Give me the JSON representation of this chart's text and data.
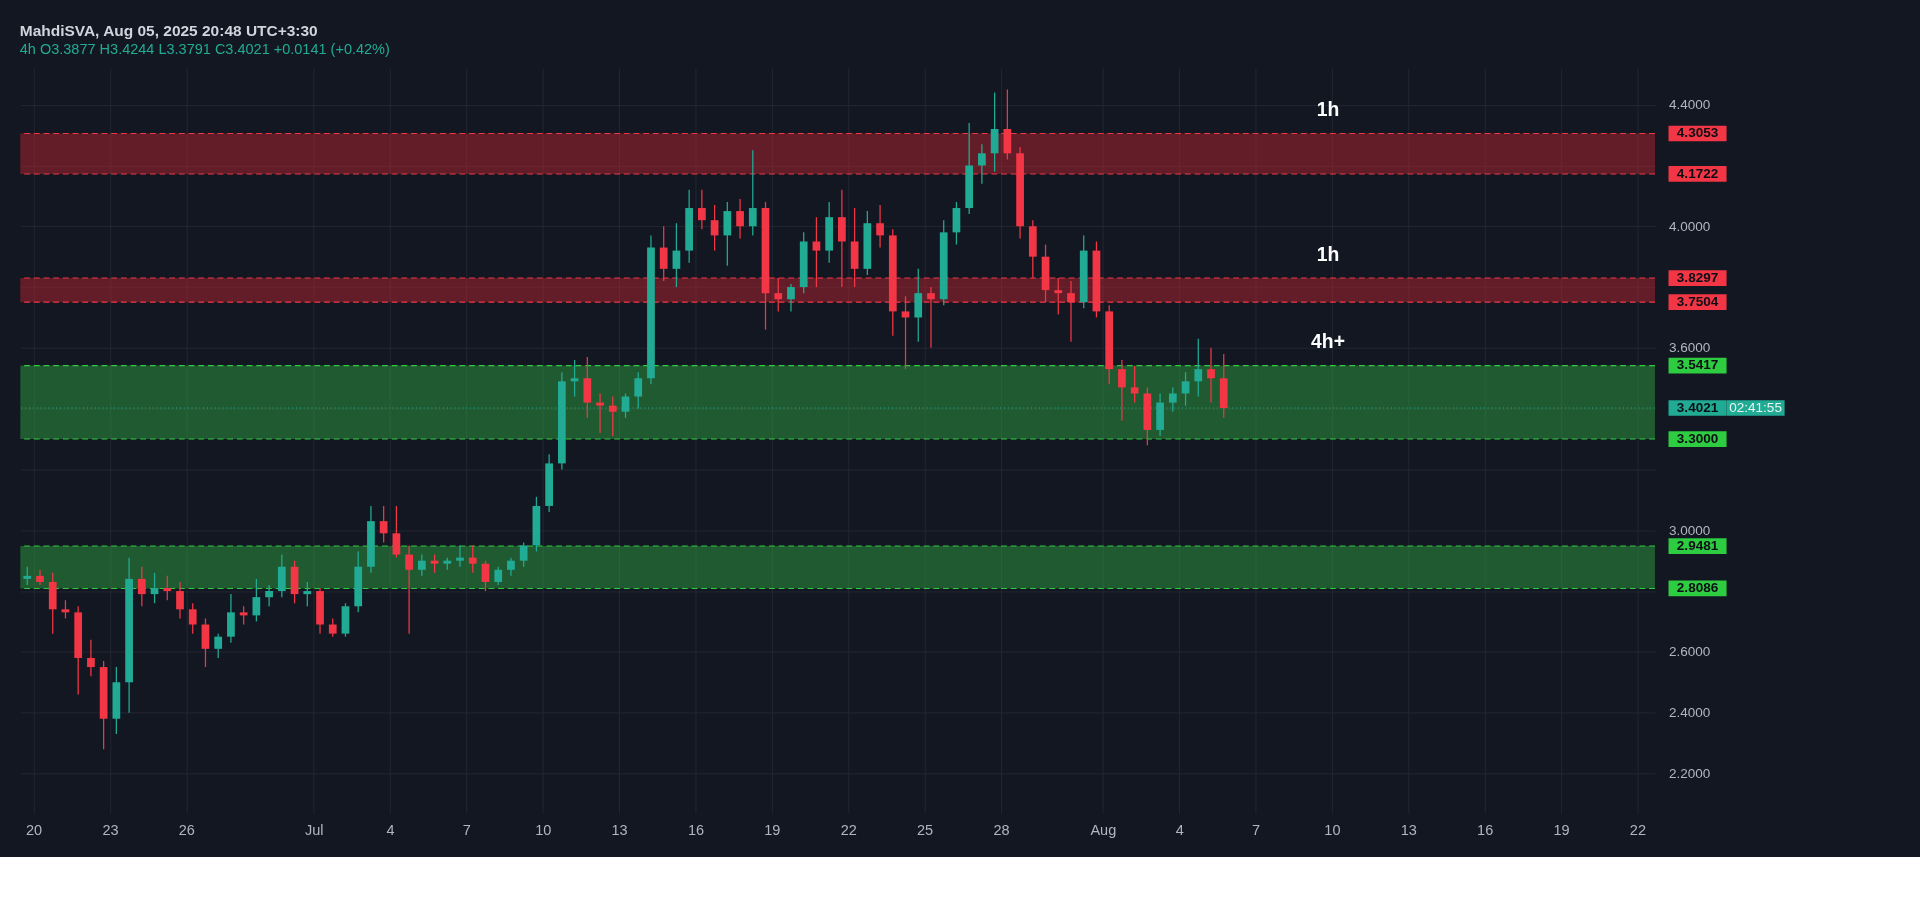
{
  "chart_data": {
    "type": "candlestick",
    "title": "MahdiSVA, Aug 05, 2025 20:48 UTC+3:30",
    "subtitle": "4h  O3.3877  H3.4244  L3.3791  C3.4021  +0.0141 (+0.42%)",
    "x": [
      "2025-06-19T18:00",
      "2025-06-20T06:00",
      "2025-06-20T18:00",
      "2025-06-21T06:00",
      "2025-06-21T18:00",
      "2025-06-22T06:00",
      "2025-06-22T18:00",
      "2025-06-23T06:00",
      "2025-06-23T18:00",
      "2025-06-24T06:00",
      "2025-06-24T18:00",
      "2025-06-25T06:00",
      "2025-06-25T18:00",
      "2025-06-26T06:00",
      "2025-06-26T18:00",
      "2025-06-27T06:00",
      "2025-06-27T18:00",
      "2025-06-28T06:00",
      "2025-06-28T18:00",
      "2025-06-29T06:00",
      "2025-06-29T18:00",
      "2025-06-30T06:00",
      "2025-06-30T18:00",
      "2025-07-01T06:00",
      "2025-07-01T18:00",
      "2025-07-02T06:00",
      "2025-07-02T18:00",
      "2025-07-03T06:00",
      "2025-07-03T18:00",
      "2025-07-04T06:00",
      "2025-07-04T18:00",
      "2025-07-05T06:00",
      "2025-07-05T18:00",
      "2025-07-06T06:00",
      "2025-07-06T18:00",
      "2025-07-07T06:00",
      "2025-07-07T18:00",
      "2025-07-08T06:00",
      "2025-07-08T18:00",
      "2025-07-09T06:00",
      "2025-07-09T18:00",
      "2025-07-10T06:00",
      "2025-07-10T18:00",
      "2025-07-11T06:00",
      "2025-07-11T18:00",
      "2025-07-12T06:00",
      "2025-07-12T18:00",
      "2025-07-13T06:00",
      "2025-07-13T18:00",
      "2025-07-14T06:00",
      "2025-07-14T18:00",
      "2025-07-15T06:00",
      "2025-07-15T18:00",
      "2025-07-16T06:00",
      "2025-07-16T18:00",
      "2025-07-17T06:00",
      "2025-07-17T18:00",
      "2025-07-18T06:00",
      "2025-07-18T18:00",
      "2025-07-19T06:00",
      "2025-07-19T18:00",
      "2025-07-20T06:00",
      "2025-07-20T18:00",
      "2025-07-21T06:00",
      "2025-07-21T18:00",
      "2025-07-22T06:00",
      "2025-07-22T18:00",
      "2025-07-23T06:00",
      "2025-07-23T18:00",
      "2025-07-24T06:00",
      "2025-07-24T18:00",
      "2025-07-25T06:00",
      "2025-07-25T18:00",
      "2025-07-26T06:00",
      "2025-07-26T18:00",
      "2025-07-27T06:00",
      "2025-07-27T18:00",
      "2025-07-28T06:00",
      "2025-07-28T18:00",
      "2025-07-29T06:00",
      "2025-07-29T18:00",
      "2025-07-30T06:00",
      "2025-07-30T18:00",
      "2025-07-31T06:00",
      "2025-07-31T18:00",
      "2025-08-01T06:00",
      "2025-08-01T18:00",
      "2025-08-02T06:00",
      "2025-08-02T18:00",
      "2025-08-03T06:00",
      "2025-08-03T18:00",
      "2025-08-04T06:00",
      "2025-08-04T18:00",
      "2025-08-05T06:00",
      "2025-08-05T18:00"
    ],
    "ohlc": [
      [
        2.84,
        2.88,
        2.82,
        2.85
      ],
      [
        2.85,
        2.87,
        2.82,
        2.83
      ],
      [
        2.83,
        2.86,
        2.66,
        2.74
      ],
      [
        2.74,
        2.77,
        2.71,
        2.73
      ],
      [
        2.73,
        2.75,
        2.46,
        2.58
      ],
      [
        2.58,
        2.64,
        2.52,
        2.55
      ],
      [
        2.55,
        2.57,
        2.28,
        2.38
      ],
      [
        2.38,
        2.55,
        2.33,
        2.5
      ],
      [
        2.5,
        2.91,
        2.4,
        2.84
      ],
      [
        2.84,
        2.88,
        2.75,
        2.79
      ],
      [
        2.79,
        2.86,
        2.76,
        2.81
      ],
      [
        2.81,
        2.85,
        2.77,
        2.8
      ],
      [
        2.8,
        2.83,
        2.71,
        2.74
      ],
      [
        2.74,
        2.76,
        2.66,
        2.69
      ],
      [
        2.69,
        2.71,
        2.55,
        2.61
      ],
      [
        2.61,
        2.66,
        2.58,
        2.65
      ],
      [
        2.65,
        2.79,
        2.63,
        2.73
      ],
      [
        2.73,
        2.75,
        2.69,
        2.72
      ],
      [
        2.72,
        2.84,
        2.7,
        2.78
      ],
      [
        2.78,
        2.82,
        2.75,
        2.8
      ],
      [
        2.8,
        2.92,
        2.78,
        2.88
      ],
      [
        2.88,
        2.9,
        2.76,
        2.79
      ],
      [
        2.79,
        2.83,
        2.75,
        2.8
      ],
      [
        2.8,
        2.81,
        2.66,
        2.69
      ],
      [
        2.69,
        2.71,
        2.65,
        2.66
      ],
      [
        2.66,
        2.76,
        2.65,
        2.75
      ],
      [
        2.75,
        2.93,
        2.73,
        2.88
      ],
      [
        2.88,
        3.08,
        2.86,
        3.03
      ],
      [
        3.03,
        3.08,
        2.96,
        2.99
      ],
      [
        2.99,
        3.08,
        2.91,
        2.92
      ],
      [
        2.92,
        2.95,
        2.66,
        2.87
      ],
      [
        2.87,
        2.92,
        2.85,
        2.9
      ],
      [
        2.9,
        2.92,
        2.86,
        2.89
      ],
      [
        2.89,
        2.91,
        2.87,
        2.9
      ],
      [
        2.9,
        2.95,
        2.88,
        2.91
      ],
      [
        2.91,
        2.95,
        2.86,
        2.89
      ],
      [
        2.89,
        2.9,
        2.8,
        2.83
      ],
      [
        2.83,
        2.88,
        2.82,
        2.87
      ],
      [
        2.87,
        2.91,
        2.85,
        2.9
      ],
      [
        2.9,
        2.96,
        2.88,
        2.95
      ],
      [
        2.95,
        3.11,
        2.93,
        3.08
      ],
      [
        3.08,
        3.25,
        3.06,
        3.22
      ],
      [
        3.22,
        3.52,
        3.2,
        3.49
      ],
      [
        3.49,
        3.56,
        3.44,
        3.5
      ],
      [
        3.5,
        3.57,
        3.37,
        3.42
      ],
      [
        3.42,
        3.45,
        3.32,
        3.41
      ],
      [
        3.41,
        3.44,
        3.31,
        3.39
      ],
      [
        3.39,
        3.45,
        3.37,
        3.44
      ],
      [
        3.44,
        3.52,
        3.4,
        3.5
      ],
      [
        3.5,
        3.97,
        3.48,
        3.93
      ],
      [
        3.93,
        4.0,
        3.82,
        3.86
      ],
      [
        3.86,
        4.01,
        3.8,
        3.92
      ],
      [
        3.92,
        4.12,
        3.88,
        4.06
      ],
      [
        4.06,
        4.12,
        3.99,
        4.02
      ],
      [
        4.02,
        4.07,
        3.92,
        3.97
      ],
      [
        3.97,
        4.08,
        3.87,
        4.05
      ],
      [
        4.05,
        4.09,
        3.96,
        4.0
      ],
      [
        4.0,
        4.25,
        3.97,
        4.06
      ],
      [
        4.06,
        4.08,
        3.66,
        3.78
      ],
      [
        3.78,
        3.83,
        3.72,
        3.76
      ],
      [
        3.76,
        3.81,
        3.72,
        3.8
      ],
      [
        3.8,
        3.98,
        3.78,
        3.95
      ],
      [
        3.95,
        4.03,
        3.8,
        3.92
      ],
      [
        3.92,
        4.08,
        3.88,
        4.03
      ],
      [
        4.03,
        4.12,
        3.8,
        3.95
      ],
      [
        3.95,
        4.06,
        3.8,
        3.86
      ],
      [
        3.86,
        4.05,
        3.84,
        4.01
      ],
      [
        4.01,
        4.07,
        3.93,
        3.97
      ],
      [
        3.97,
        3.99,
        3.64,
        3.72
      ],
      [
        3.72,
        3.77,
        3.53,
        3.7
      ],
      [
        3.7,
        3.86,
        3.62,
        3.78
      ],
      [
        3.78,
        3.8,
        3.6,
        3.76
      ],
      [
        3.76,
        4.02,
        3.74,
        3.98
      ],
      [
        3.98,
        4.08,
        3.94,
        4.06
      ],
      [
        4.06,
        4.34,
        4.04,
        4.2
      ],
      [
        4.2,
        4.27,
        4.14,
        4.24
      ],
      [
        4.24,
        4.44,
        4.18,
        4.32
      ],
      [
        4.32,
        4.45,
        4.22,
        4.24
      ],
      [
        4.24,
        4.26,
        3.96,
        4.0
      ],
      [
        4.0,
        4.02,
        3.83,
        3.9
      ],
      [
        3.9,
        3.94,
        3.75,
        3.79
      ],
      [
        3.79,
        3.83,
        3.71,
        3.78
      ],
      [
        3.78,
        3.82,
        3.62,
        3.75
      ],
      [
        3.75,
        3.97,
        3.73,
        3.92
      ],
      [
        3.92,
        3.95,
        3.7,
        3.72
      ],
      [
        3.72,
        3.74,
        3.48,
        3.53
      ],
      [
        3.53,
        3.56,
        3.36,
        3.47
      ],
      [
        3.47,
        3.54,
        3.42,
        3.45
      ],
      [
        3.45,
        3.47,
        3.28,
        3.33
      ],
      [
        3.33,
        3.45,
        3.31,
        3.42
      ],
      [
        3.42,
        3.47,
        3.39,
        3.45
      ],
      [
        3.45,
        3.52,
        3.41,
        3.49
      ],
      [
        3.49,
        3.63,
        3.44,
        3.53
      ],
      [
        3.53,
        3.6,
        3.42,
        3.5
      ],
      [
        3.5,
        3.58,
        3.37,
        3.4021
      ]
    ],
    "colors": [
      "#22ab94",
      "#f23645",
      "#f23645",
      "#f23645",
      "#f23645",
      "#f23645",
      "#f23645",
      "#22ab94",
      "#22ab94",
      "#f23645",
      "#22ab94",
      "#f23645",
      "#f23645",
      "#f23645",
      "#f23645",
      "#22ab94",
      "#22ab94",
      "#f23645",
      "#22ab94",
      "#22ab94",
      "#22ab94",
      "#f23645",
      "#22ab94",
      "#f23645",
      "#f23645",
      "#22ab94",
      "#22ab94",
      "#22ab94",
      "#f23645",
      "#f23645",
      "#f23645",
      "#22ab94",
      "#f23645",
      "#22ab94",
      "#22ab94",
      "#f23645",
      "#f23645",
      "#22ab94",
      "#22ab94",
      "#22ab94",
      "#22ab94",
      "#22ab94",
      "#22ab94",
      "#22ab94",
      "#f23645",
      "#f23645",
      "#f23645",
      "#22ab94",
      "#22ab94",
      "#22ab94",
      "#f23645",
      "#22ab94",
      "#22ab94",
      "#f23645",
      "#f23645",
      "#22ab94",
      "#f23645",
      "#22ab94",
      "#f23645",
      "#f23645",
      "#22ab94",
      "#22ab94",
      "#f23645",
      "#22ab94",
      "#f23645",
      "#f23645",
      "#22ab94",
      "#f23645",
      "#f23645",
      "#f23645",
      "#22ab94",
      "#f23645",
      "#22ab94",
      "#22ab94",
      "#22ab94",
      "#22ab94",
      "#22ab94",
      "#f23645",
      "#f23645",
      "#f23645",
      "#f23645",
      "#f23645",
      "#f23645",
      "#22ab94",
      "#f23645",
      "#f23645",
      "#f23645",
      "#f23645",
      "#f23645",
      "#22ab94",
      "#22ab94",
      "#22ab94",
      "#22ab94",
      "#f23645",
      "#f23645"
    ],
    "xlim": [
      "2025-06-19T16:00",
      "2025-08-22T12:00"
    ],
    "xticks": [
      {
        "value": "2025-06-20",
        "label": "20"
      },
      {
        "value": "2025-06-23",
        "label": "23"
      },
      {
        "value": "2025-06-26",
        "label": "26"
      },
      {
        "value": "2025-07-01",
        "label": "Jul"
      },
      {
        "value": "2025-07-04",
        "label": "4"
      },
      {
        "value": "2025-07-07",
        "label": "7"
      },
      {
        "value": "2025-07-10",
        "label": "10"
      },
      {
        "value": "2025-07-13",
        "label": "13"
      },
      {
        "value": "2025-07-16",
        "label": "16"
      },
      {
        "value": "2025-07-19",
        "label": "19"
      },
      {
        "value": "2025-07-22",
        "label": "22"
      },
      {
        "value": "2025-07-25",
        "label": "25"
      },
      {
        "value": "2025-07-28",
        "label": "28"
      },
      {
        "value": "2025-08-01",
        "label": "Aug"
      },
      {
        "value": "2025-08-04",
        "label": "4"
      },
      {
        "value": "2025-08-07",
        "label": "7"
      },
      {
        "value": "2025-08-10",
        "label": "10"
      },
      {
        "value": "2025-08-13",
        "label": "13"
      },
      {
        "value": "2025-08-16",
        "label": "16"
      },
      {
        "value": "2025-08-19",
        "label": "19"
      },
      {
        "value": "2025-08-22",
        "label": "22"
      }
    ],
    "ylim": [
      2.07,
      4.52
    ],
    "yticks": [
      {
        "value": 2.2,
        "label": "2.2000"
      },
      {
        "value": 2.4,
        "label": "2.4000"
      },
      {
        "value": 2.6,
        "label": "2.6000"
      },
      {
        "value": 2.8,
        "label": null
      },
      {
        "value": 3.0,
        "label": "3.0000"
      },
      {
        "value": 3.2,
        "label": null
      },
      {
        "value": 3.4,
        "label": null
      },
      {
        "value": 3.6,
        "label": "3.6000"
      },
      {
        "value": 3.8,
        "label": null
      },
      {
        "value": 4.0,
        "label": "4.0000"
      },
      {
        "value": 4.2,
        "label": null
      },
      {
        "value": 4.4,
        "label": "4.4000"
      }
    ],
    "grid": true,
    "bands": [
      {
        "axis": "y",
        "from": 4.1722,
        "to": 4.3053,
        "label": "1h",
        "color": "#b3242f"
      },
      {
        "axis": "y",
        "from": 3.7504,
        "to": 3.8297,
        "label": "1h",
        "color": "#b3242f"
      },
      {
        "axis": "y",
        "from": 3.3,
        "to": 3.5417,
        "label": "4h+",
        "color": "#2e9e3e"
      },
      {
        "axis": "y",
        "from": 2.8086,
        "to": 2.9481,
        "color": "#2e9e3e"
      }
    ],
    "ref_lines": [
      {
        "axis": "y",
        "value": 4.3053,
        "label": "4.3053",
        "color": "#f23645",
        "line_style": "dashed"
      },
      {
        "axis": "y",
        "value": 4.1722,
        "label": "4.1722",
        "color": "#f23645",
        "line_style": "dashed"
      },
      {
        "axis": "y",
        "value": 3.8297,
        "label": "3.8297",
        "color": "#f23645",
        "line_style": "dashed"
      },
      {
        "axis": "y",
        "value": 3.7504,
        "label": "3.7504",
        "color": "#f23645",
        "line_style": "dashed"
      },
      {
        "axis": "y",
        "value": 3.5417,
        "label": "3.5417",
        "color": "#2ecc40",
        "line_style": "dashed"
      },
      {
        "axis": "y",
        "value": 3.4021,
        "label": "3.4021",
        "color": "#22ab94",
        "line_style": "dotted"
      },
      {
        "axis": "y",
        "value": 3.3,
        "label": "3.3000",
        "color": "#2ecc40",
        "line_style": "dashed"
      },
      {
        "axis": "y",
        "value": 2.9481,
        "label": "2.9481",
        "color": "#2ecc40",
        "line_style": "dashed"
      },
      {
        "axis": "y",
        "value": 2.8086,
        "label": "2.8086",
        "color": "#2ecc40",
        "line_style": "dashed"
      }
    ],
    "annotations": [
      "02:41:55"
    ]
  }
}
